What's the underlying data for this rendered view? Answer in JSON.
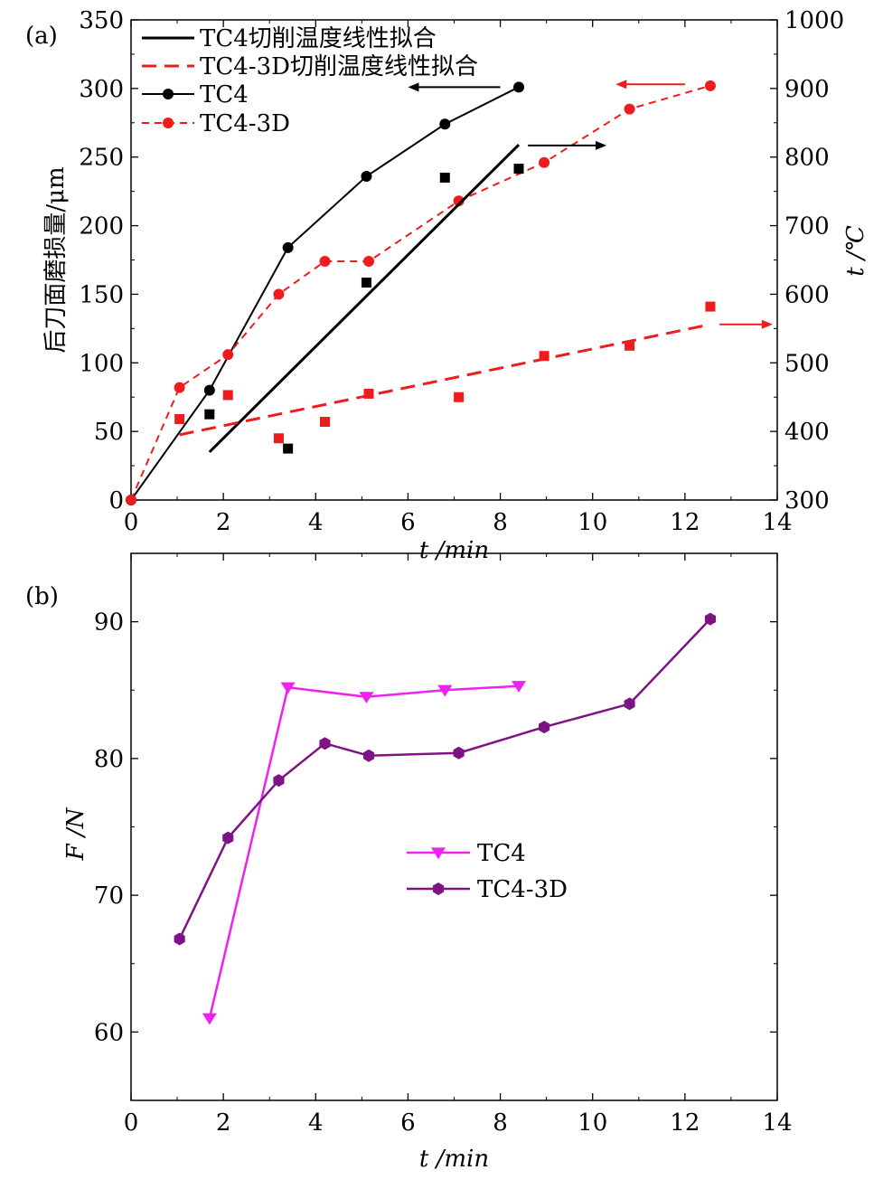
{
  "chart_data": [
    {
      "panel_label": "(a)",
      "type": "line",
      "xlabel": "t /min",
      "ylabel": "后刀面磨损量/μm",
      "y2label": "t /℃",
      "xlim": [
        0,
        14
      ],
      "ylim": [
        0,
        350
      ],
      "y2lim": [
        300,
        1000
      ],
      "xticks": [
        "0",
        "2",
        "4",
        "6",
        "8",
        "10",
        "12",
        "14"
      ],
      "yticks": [
        "0",
        "50",
        "100",
        "150",
        "200",
        "250",
        "300",
        "350"
      ],
      "y2ticks": [
        "300",
        "400",
        "500",
        "600",
        "700",
        "800",
        "900",
        "1000"
      ],
      "grid": false,
      "legend_position": "top-left",
      "legend": [
        {
          "name": "TC4切削温度线性拟合",
          "color": "#000000",
          "style": "solid"
        },
        {
          "name": "TC4-3D切削温度线性拟合",
          "color": "#ee1c1c",
          "style": "dashed"
        },
        {
          "name": "TC4",
          "color": "#000000",
          "style": "line-circle"
        },
        {
          "name": "TC4-3D",
          "color": "#ee1c1c",
          "style": "dashed-circle"
        }
      ],
      "series": [
        {
          "name": "TC4",
          "axis": "left",
          "marker": "circle",
          "color": "#000000",
          "line": "solid",
          "x": [
            0,
            1.7,
            3.4,
            5.1,
            6.8,
            8.4
          ],
          "y": [
            0,
            80,
            184,
            236,
            274,
            301
          ]
        },
        {
          "name": "TC4-3D",
          "axis": "left",
          "marker": "circle",
          "color": "#ee1c1c",
          "line": "dashed",
          "x": [
            0,
            1.05,
            2.1,
            3.2,
            4.2,
            5.15,
            7.1,
            8.95,
            10.8,
            12.55
          ],
          "y": [
            0,
            82,
            106,
            150,
            174,
            174,
            218,
            246,
            285,
            302
          ]
        },
        {
          "axis": "right",
          "marker": "square",
          "color": "#000000",
          "line": "none",
          "x": [
            1.7,
            3.4,
            5.1,
            6.8,
            8.4
          ],
          "y": [
            425,
            375,
            617,
            770,
            783
          ]
        },
        {
          "axis": "right",
          "marker": "square",
          "color": "#ee1c1c",
          "line": "none",
          "x": [
            1.05,
            2.1,
            3.2,
            4.2,
            5.15,
            7.1,
            8.95,
            10.8,
            12.55
          ],
          "y": [
            418,
            453,
            390,
            414,
            455,
            450,
            510,
            525,
            582
          ]
        },
        {
          "name": "TC4切削温度线性拟合",
          "axis": "right",
          "marker": "none",
          "color": "#000000",
          "line": "solid",
          "width": 3,
          "x": [
            1.7,
            8.4
          ],
          "y": [
            370,
            818
          ]
        },
        {
          "name": "TC4-3D切削温度线性拟合",
          "axis": "right",
          "marker": "none",
          "color": "#ee1c1c",
          "line": "dashed",
          "width": 3,
          "x": [
            1.05,
            12.55
          ],
          "y": [
            395,
            556
          ]
        }
      ],
      "annotations": [
        {
          "type": "arrow",
          "color": "#000000",
          "x1": 8.0,
          "y1": 301,
          "x2": 6.0,
          "y2": 301,
          "axis": "left",
          "meaning": "points to left axis"
        },
        {
          "type": "arrow",
          "color": "#000000",
          "x1": 8.6,
          "y1": 817,
          "x2": 10.3,
          "y2": 817,
          "axis": "right",
          "meaning": "points to right axis"
        },
        {
          "type": "arrow",
          "color": "#ee1c1c",
          "x1": 12.0,
          "y1": 303,
          "x2": 10.5,
          "y2": 303,
          "axis": "left",
          "meaning": "points to left axis"
        },
        {
          "type": "arrow",
          "color": "#ee1c1c",
          "x1": 12.75,
          "y1": 556,
          "x2": 13.9,
          "y2": 556,
          "axis": "right",
          "meaning": "points to right axis"
        }
      ]
    },
    {
      "panel_label": "(b)",
      "type": "line",
      "xlabel": "t /min",
      "ylabel": "F /N",
      "xlim": [
        0,
        14
      ],
      "ylim": [
        55,
        95
      ],
      "xticks": [
        "0",
        "2",
        "4",
        "6",
        "8",
        "10",
        "12",
        "14"
      ],
      "yticks": [
        "60",
        "70",
        "80",
        "90"
      ],
      "grid": false,
      "legend_position": "center-right",
      "series": [
        {
          "name": "TC4",
          "marker": "triangle-down",
          "color": "#ee22ee",
          "x": [
            1.7,
            3.4,
            5.1,
            6.8,
            8.4
          ],
          "y": [
            61.0,
            85.2,
            84.5,
            85.0,
            85.3
          ]
        },
        {
          "name": "TC4-3D",
          "marker": "hexagon",
          "color": "#7d1384",
          "x": [
            1.05,
            2.1,
            3.2,
            4.2,
            5.15,
            7.1,
            8.95,
            10.8,
            12.55
          ],
          "y": [
            66.8,
            74.2,
            78.4,
            81.1,
            80.2,
            80.4,
            82.3,
            84.0,
            90.2
          ]
        }
      ]
    }
  ]
}
